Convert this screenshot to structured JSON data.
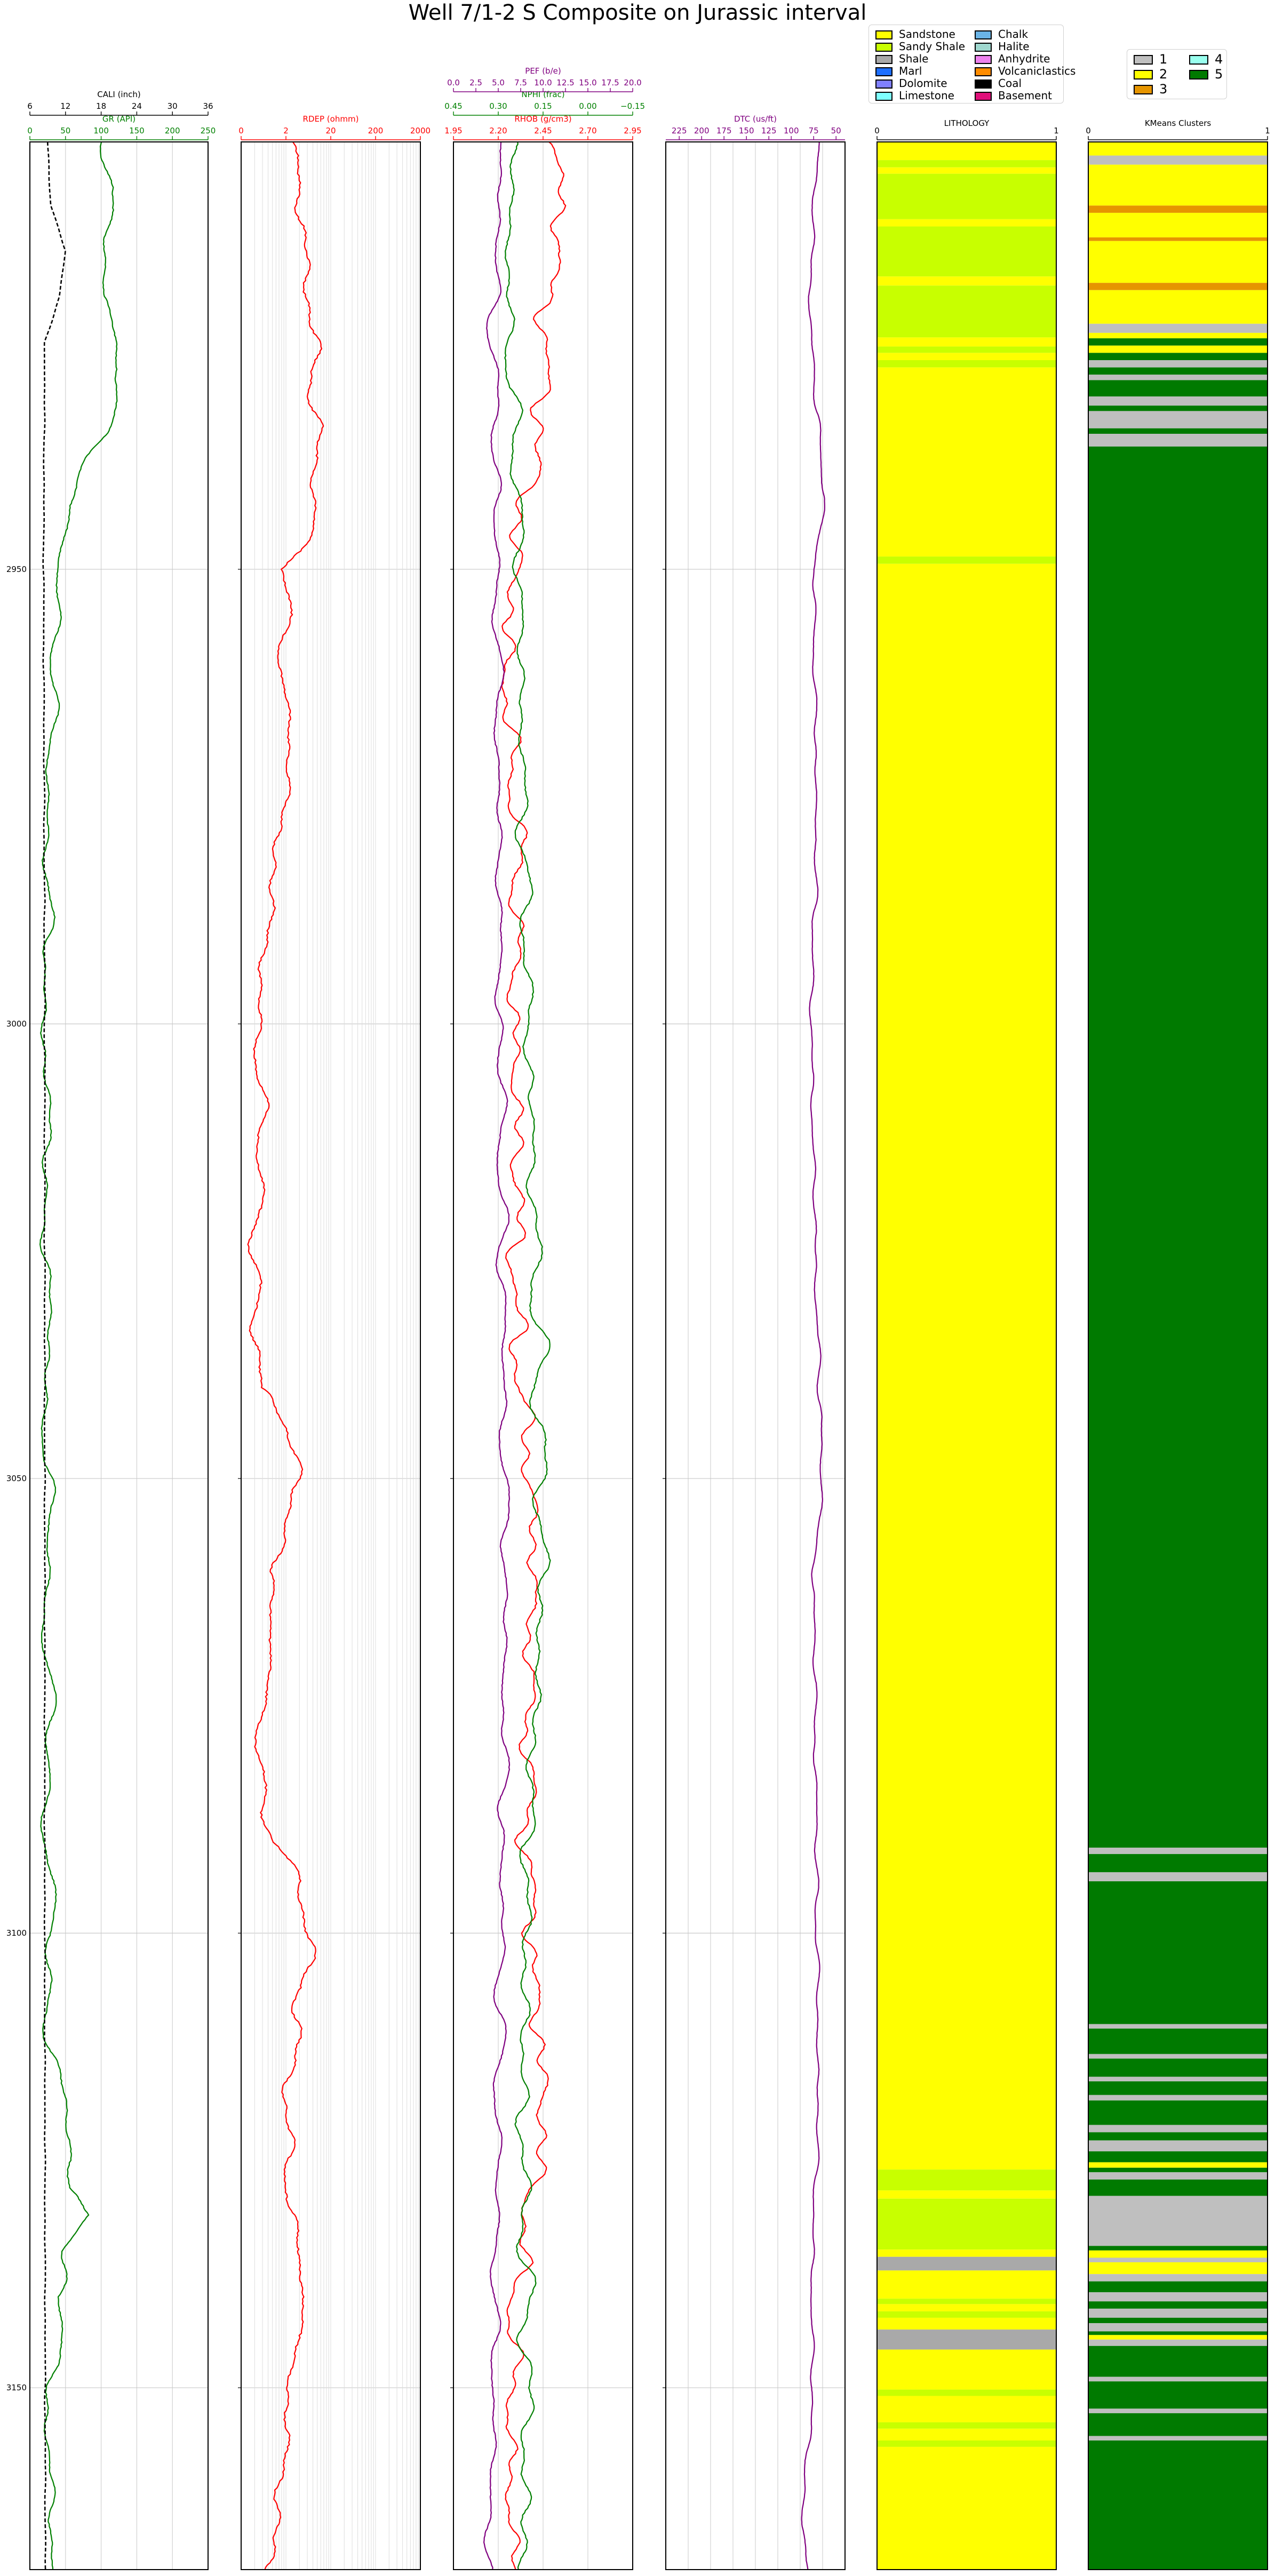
{
  "title": "Well 7/1-2 S Composite on Jurassic interval",
  "depth_axis": {
    "min": 2903,
    "max": 3170,
    "ticks": [
      2950,
      3000,
      3050,
      3100,
      3150
    ]
  },
  "colors": {
    "gr": "#008000",
    "cali": "#000000",
    "rdep": "#ff0000",
    "rhob": "#ff0000",
    "nphi": "#008000",
    "pef": "#800080",
    "dtc": "#800080",
    "grid": "#c8c8c8",
    "frame": "#000000"
  },
  "tracks": {
    "gr_cali": {
      "gr": {
        "label": "GR (API)",
        "ticks": [
          "0",
          "50",
          "100",
          "150",
          "200",
          "250"
        ],
        "range": [
          0,
          250
        ]
      },
      "cali": {
        "label": "CALI (inch)",
        "ticks": [
          "6",
          "12",
          "18",
          "24",
          "30",
          "36"
        ],
        "range": [
          6,
          36
        ]
      }
    },
    "rdep": {
      "label": "RDEP (ohmm)",
      "ticks": [
        "0",
        "2",
        "20",
        "200",
        "2000"
      ],
      "range": [
        0.2,
        2000
      ],
      "scale": "log"
    },
    "density": {
      "pef": {
        "label": "PEF (b/e)",
        "ticks": [
          "0.0",
          "2.5",
          "5.0",
          "7.5",
          "10.0",
          "12.5",
          "15.0",
          "17.5",
          "20.0"
        ],
        "range": [
          0,
          20
        ]
      },
      "nphi": {
        "label": "NPHI (frac)",
        "ticks": [
          "0.45",
          "0.30",
          "0.15",
          "0.00",
          "−0.15"
        ],
        "range": [
          0.45,
          -0.15
        ]
      },
      "rhob": {
        "label": "RHOB (g/cm3)",
        "ticks": [
          "1.95",
          "2.20",
          "2.45",
          "2.70",
          "2.95"
        ],
        "range": [
          1.95,
          2.95
        ]
      }
    },
    "dtc": {
      "label": "DTC (us/ft)",
      "ticks": [
        "225",
        "200",
        "175",
        "150",
        "125",
        "100",
        "75",
        "50"
      ],
      "range": [
        240,
        40
      ]
    },
    "lithology": {
      "label": "LITHOLOGY",
      "ticks": [
        "0",
        "1"
      ]
    },
    "kmeans": {
      "label": "KMeans Clusters",
      "ticks": [
        "0",
        "1"
      ]
    }
  },
  "lithology_legend": [
    {
      "name": "Sandstone",
      "color": "#ffff00"
    },
    {
      "name": "Sandy Shale",
      "color": "#c8ff00"
    },
    {
      "name": "Shale",
      "color": "#a9a9a9"
    },
    {
      "name": "Marl",
      "color": "#1e6fff"
    },
    {
      "name": "Dolomite",
      "color": "#8080ff"
    },
    {
      "name": "Limestone",
      "color": "#7fffff"
    },
    {
      "name": "Chalk",
      "color": "#6ab4e6"
    },
    {
      "name": "Halite",
      "color": "#9fd8cf"
    },
    {
      "name": "Anhydrite",
      "color": "#ee82ee"
    },
    {
      "name": "Volcaniclastics",
      "color": "#ff8c00"
    },
    {
      "name": "Coal",
      "color": "#000000"
    },
    {
      "name": "Basement",
      "color": "#e0107a"
    }
  ],
  "kmeans_legend": [
    {
      "name": "1",
      "color": "#bfbfbf"
    },
    {
      "name": "2",
      "color": "#ffff00"
    },
    {
      "name": "3",
      "color": "#e69500"
    },
    {
      "name": "4",
      "color": "#99ffee"
    },
    {
      "name": "5",
      "color": "#007a00"
    }
  ],
  "chart_data": {
    "type": "line",
    "title": "Well 7/1-2 S Composite on Jurassic interval",
    "y_axis": {
      "ticks": [
        2950,
        3000,
        3050,
        3100,
        3150
      ],
      "ylim": [
        3170,
        2903
      ],
      "grid": true
    },
    "curves": [
      {
        "name": "GR (API)",
        "xlim": [
          0,
          250
        ],
        "depth": [
          2903,
          2908,
          2913,
          2920,
          2928,
          2935,
          2940,
          2943,
          2948,
          2955,
          2965,
          2980,
          3000,
          3030,
          3060,
          3090,
          3110,
          3120,
          3125,
          3128,
          3131,
          3135,
          3140,
          3145,
          3150,
          3160,
          3170
        ],
        "values": [
          100,
          120,
          110,
          100,
          130,
          110,
          65,
          50,
          45,
          40,
          30,
          25,
          22,
          24,
          25,
          26,
          28,
          45,
          60,
          55,
          90,
          50,
          35,
          45,
          30,
          25,
          30
        ]
      },
      {
        "name": "CALI (inch)",
        "xlim": [
          6,
          36
        ],
        "depth": [
          2903,
          2910,
          2915,
          2920,
          2925,
          2950,
          3000,
          3100,
          3170
        ],
        "values": [
          9,
          9.5,
          12,
          11,
          8.5,
          8.3,
          8.5,
          8.5,
          8.6
        ]
      },
      {
        "name": "RDEP (ohmm)",
        "xlim": [
          0.2,
          2000
        ],
        "scale": "log",
        "depth": [
          2903,
          2910,
          2920,
          2930,
          2940,
          2950,
          2960,
          2970,
          2980,
          2990,
          3000,
          3020,
          3040,
          3050,
          3060,
          3080,
          3090,
          3100,
          3110,
          3120,
          3130,
          3140,
          3150,
          3160,
          3170
        ],
        "values": [
          3,
          5,
          6,
          8,
          12,
          2,
          1.5,
          3,
          1,
          0.8,
          0.5,
          0.5,
          0.4,
          4,
          1,
          0.5,
          1,
          6,
          4,
          2,
          2,
          6,
          2,
          1.5,
          1
        ]
      },
      {
        "name": "RHOB (g/cm3)",
        "xlim": [
          1.95,
          2.95
        ],
        "depth": [
          2903,
          2910,
          2920,
          2935,
          2945,
          2960,
          2980,
          3000,
          3030,
          3060,
          3090,
          3100,
          3120,
          3140,
          3160,
          3170
        ],
        "values": [
          2.5,
          2.55,
          2.48,
          2.45,
          2.3,
          2.25,
          2.3,
          2.3,
          2.3,
          2.4,
          2.35,
          2.4,
          2.45,
          2.3,
          2.25,
          2.3
        ]
      },
      {
        "name": "NPHI (frac)",
        "xlim": [
          0.45,
          -0.15
        ],
        "depth": [
          2903,
          2920,
          2945,
          2970,
          3000,
          3030,
          3060,
          3090,
          3120,
          3150,
          3170
        ],
        "values": [
          0.25,
          0.27,
          0.23,
          0.22,
          0.2,
          0.17,
          0.15,
          0.2,
          0.22,
          0.2,
          0.22
        ]
      },
      {
        "name": "PEF (b/e)",
        "xlim": [
          0,
          20
        ],
        "depth": [
          2903,
          2920,
          2945,
          2970,
          3000,
          3030,
          3060,
          3090,
          3120,
          3150,
          3170
        ],
        "values": [
          5.5,
          4.5,
          4.8,
          5,
          5.2,
          5.5,
          5.8,
          5.5,
          5,
          4.5,
          4
        ]
      },
      {
        "name": "DTC (us/ft)",
        "xlim": [
          240,
          40
        ],
        "depth": [
          2903,
          2920,
          2935,
          2942,
          2950,
          2980,
          3000,
          3030,
          3050,
          3060,
          3090,
          3120,
          3140,
          3150,
          3160,
          3165,
          3170
        ],
        "values": [
          70,
          80,
          70,
          62,
          75,
          72,
          78,
          72,
          65,
          75,
          72,
          70,
          78,
          75,
          85,
          88,
          80
        ]
      }
    ],
    "lithology": [
      {
        "top": 2903,
        "bottom": 2905,
        "class": "Sandstone"
      },
      {
        "top": 2905,
        "bottom": 2905.8,
        "class": "Sandy Shale"
      },
      {
        "top": 2905.8,
        "bottom": 2906.5,
        "class": "Sandstone"
      },
      {
        "top": 2906.5,
        "bottom": 2911.5,
        "class": "Sandy Shale"
      },
      {
        "top": 2911.5,
        "bottom": 2912.3,
        "class": "Sandstone"
      },
      {
        "top": 2912.3,
        "bottom": 2917.8,
        "class": "Sandy Shale"
      },
      {
        "top": 2917.8,
        "bottom": 2918.8,
        "class": "Sandstone"
      },
      {
        "top": 2918.8,
        "bottom": 2924.5,
        "class": "Sandy Shale"
      },
      {
        "top": 2924.5,
        "bottom": 2925.5,
        "class": "Sandstone"
      },
      {
        "top": 2925.5,
        "bottom": 2926.2,
        "class": "Sandy Shale"
      },
      {
        "top": 2926.2,
        "bottom": 2927,
        "class": "Sandstone"
      },
      {
        "top": 2927,
        "bottom": 2927.8,
        "class": "Sandy Shale"
      },
      {
        "top": 2927.8,
        "bottom": 2948.6,
        "class": "Sandstone"
      },
      {
        "top": 2948.6,
        "bottom": 2949.4,
        "class": "Sandy Shale"
      },
      {
        "top": 2949.4,
        "bottom": 3126,
        "class": "Sandstone"
      },
      {
        "top": 3126,
        "bottom": 3128.3,
        "class": "Sandy Shale"
      },
      {
        "top": 3128.3,
        "bottom": 3129.2,
        "class": "Sandstone"
      },
      {
        "top": 3129.2,
        "bottom": 3134.8,
        "class": "Sandy Shale"
      },
      {
        "top": 3134.8,
        "bottom": 3135.6,
        "class": "Sandstone"
      },
      {
        "top": 3135.6,
        "bottom": 3137.1,
        "class": "Shale"
      },
      {
        "top": 3137.1,
        "bottom": 3140.2,
        "class": "Sandstone"
      },
      {
        "top": 3140.2,
        "bottom": 3140.8,
        "class": "Sandy Shale"
      },
      {
        "top": 3140.8,
        "bottom": 3141.6,
        "class": "Sandstone"
      },
      {
        "top": 3141.6,
        "bottom": 3142.3,
        "class": "Sandy Shale"
      },
      {
        "top": 3142.3,
        "bottom": 3143.6,
        "class": "Sandstone"
      },
      {
        "top": 3143.6,
        "bottom": 3145.8,
        "class": "Shale"
      },
      {
        "top": 3145.8,
        "bottom": 3150.2,
        "class": "Sandstone"
      },
      {
        "top": 3150.2,
        "bottom": 3150.9,
        "class": "Sandy Shale"
      },
      {
        "top": 3150.9,
        "bottom": 3153.8,
        "class": "Sandstone"
      },
      {
        "top": 3153.8,
        "bottom": 3154.5,
        "class": "Sandy Shale"
      },
      {
        "top": 3154.5,
        "bottom": 3155.8,
        "class": "Sandstone"
      },
      {
        "top": 3155.8,
        "bottom": 3156.5,
        "class": "Sandy Shale"
      },
      {
        "top": 3156.5,
        "bottom": 3170,
        "class": "Sandstone"
      }
    ],
    "kmeans": [
      {
        "top": 2903,
        "bottom": 2904.5,
        "cluster": "2"
      },
      {
        "top": 2904.5,
        "bottom": 2905.5,
        "cluster": "1"
      },
      {
        "top": 2905.5,
        "bottom": 2910,
        "cluster": "2"
      },
      {
        "top": 2910,
        "bottom": 2910.8,
        "cluster": "3"
      },
      {
        "top": 2910.8,
        "bottom": 2913.5,
        "cluster": "2"
      },
      {
        "top": 2913.5,
        "bottom": 2913.9,
        "cluster": "3"
      },
      {
        "top": 2913.9,
        "bottom": 2918.5,
        "cluster": "2"
      },
      {
        "top": 2918.5,
        "bottom": 2919.3,
        "cluster": "3"
      },
      {
        "top": 2919.3,
        "bottom": 2923,
        "cluster": "2"
      },
      {
        "top": 2923,
        "bottom": 2924,
        "cluster": "1"
      },
      {
        "top": 2924,
        "bottom": 2924.6,
        "cluster": "2"
      },
      {
        "top": 2924.6,
        "bottom": 2925.4,
        "cluster": "5"
      },
      {
        "top": 2925.4,
        "bottom": 2926.2,
        "cluster": "2"
      },
      {
        "top": 2926.2,
        "bottom": 2927,
        "cluster": "5"
      },
      {
        "top": 2927,
        "bottom": 2927.8,
        "cluster": "1"
      },
      {
        "top": 2927.8,
        "bottom": 2928.6,
        "cluster": "5"
      },
      {
        "top": 2928.6,
        "bottom": 2929.2,
        "cluster": "1"
      },
      {
        "top": 2929.2,
        "bottom": 2931,
        "cluster": "5"
      },
      {
        "top": 2931,
        "bottom": 2932,
        "cluster": "1"
      },
      {
        "top": 2932,
        "bottom": 2932.6,
        "cluster": "5"
      },
      {
        "top": 2932.6,
        "bottom": 2934.5,
        "cluster": "1"
      },
      {
        "top": 2934.5,
        "bottom": 2935.1,
        "cluster": "5"
      },
      {
        "top": 2935.1,
        "bottom": 2936.5,
        "cluster": "1"
      },
      {
        "top": 2936.5,
        "bottom": 3090.6,
        "cluster": "5"
      },
      {
        "top": 3090.6,
        "bottom": 3091.3,
        "cluster": "1"
      },
      {
        "top": 3091.3,
        "bottom": 3093.3,
        "cluster": "5"
      },
      {
        "top": 3093.3,
        "bottom": 3094.3,
        "cluster": "1"
      },
      {
        "top": 3094.3,
        "bottom": 3110,
        "cluster": "5"
      },
      {
        "top": 3110,
        "bottom": 3110.5,
        "cluster": "1"
      },
      {
        "top": 3110.5,
        "bottom": 3113.3,
        "cluster": "5"
      },
      {
        "top": 3113.3,
        "bottom": 3113.8,
        "cluster": "1"
      },
      {
        "top": 3113.8,
        "bottom": 3115.8,
        "cluster": "5"
      },
      {
        "top": 3115.8,
        "bottom": 3116.3,
        "cluster": "1"
      },
      {
        "top": 3116.3,
        "bottom": 3117.8,
        "cluster": "5"
      },
      {
        "top": 3117.8,
        "bottom": 3118.4,
        "cluster": "1"
      },
      {
        "top": 3118.4,
        "bottom": 3121.1,
        "cluster": "5"
      },
      {
        "top": 3121.1,
        "bottom": 3121.9,
        "cluster": "1"
      },
      {
        "top": 3121.9,
        "bottom": 3122.8,
        "cluster": "5"
      },
      {
        "top": 3122.8,
        "bottom": 3124,
        "cluster": "1"
      },
      {
        "top": 3124,
        "bottom": 3125.2,
        "cluster": "5"
      },
      {
        "top": 3125.2,
        "bottom": 3125.8,
        "cluster": "2"
      },
      {
        "top": 3125.8,
        "bottom": 3126.3,
        "cluster": "5"
      },
      {
        "top": 3126.3,
        "bottom": 3127.1,
        "cluster": "1"
      },
      {
        "top": 3127.1,
        "bottom": 3128.9,
        "cluster": "5"
      },
      {
        "top": 3128.9,
        "bottom": 3134.4,
        "cluster": "1"
      },
      {
        "top": 3134.4,
        "bottom": 3134.9,
        "cluster": "5"
      },
      {
        "top": 3134.9,
        "bottom": 3135.7,
        "cluster": "2"
      },
      {
        "top": 3135.7,
        "bottom": 3136.2,
        "cluster": "1"
      },
      {
        "top": 3136.2,
        "bottom": 3137.5,
        "cluster": "2"
      },
      {
        "top": 3137.5,
        "bottom": 3138.3,
        "cluster": "1"
      },
      {
        "top": 3138.3,
        "bottom": 3139.5,
        "cluster": "5"
      },
      {
        "top": 3139.5,
        "bottom": 3140.5,
        "cluster": "1"
      },
      {
        "top": 3140.5,
        "bottom": 3141.3,
        "cluster": "5"
      },
      {
        "top": 3141.3,
        "bottom": 3142.3,
        "cluster": "1"
      },
      {
        "top": 3142.3,
        "bottom": 3142.9,
        "cluster": "5"
      },
      {
        "top": 3142.9,
        "bottom": 3143.8,
        "cluster": "1"
      },
      {
        "top": 3143.8,
        "bottom": 3144.2,
        "cluster": "5"
      },
      {
        "top": 3144.2,
        "bottom": 3144.7,
        "cluster": "2"
      },
      {
        "top": 3144.7,
        "bottom": 3145.4,
        "cluster": "1"
      },
      {
        "top": 3145.4,
        "bottom": 3148.8,
        "cluster": "5"
      },
      {
        "top": 3148.8,
        "bottom": 3149.3,
        "cluster": "1"
      },
      {
        "top": 3149.3,
        "bottom": 3152.3,
        "cluster": "5"
      },
      {
        "top": 3152.3,
        "bottom": 3152.8,
        "cluster": "1"
      },
      {
        "top": 3152.8,
        "bottom": 3155.3,
        "cluster": "5"
      },
      {
        "top": 3155.3,
        "bottom": 3155.8,
        "cluster": "1"
      },
      {
        "top": 3155.8,
        "bottom": 3170,
        "cluster": "5"
      }
    ]
  }
}
